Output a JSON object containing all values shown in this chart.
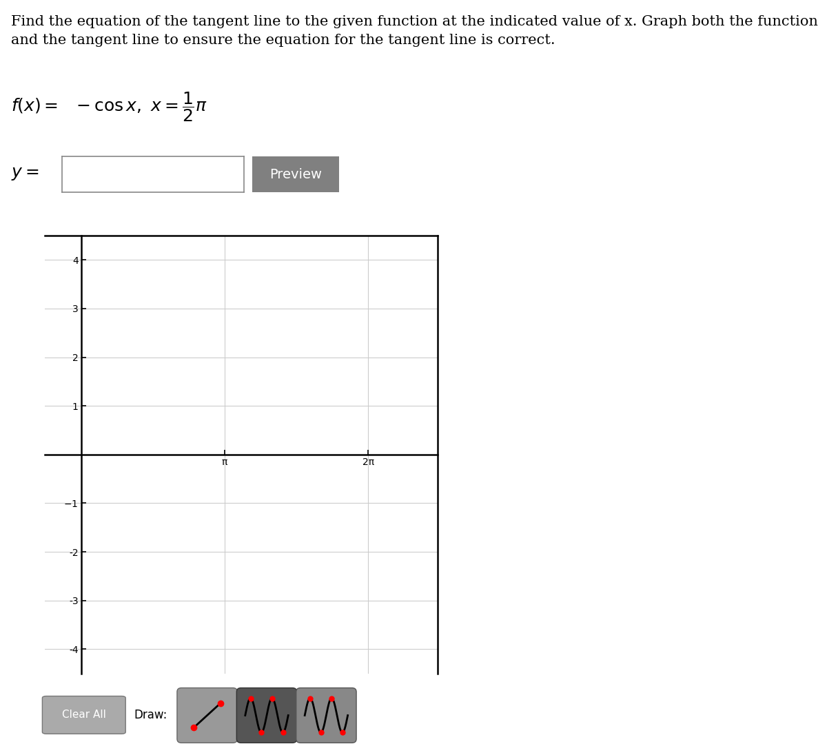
{
  "title_line1": "Find the equation of the tangent line to the given function at the indicated value of x. Graph both the function",
  "title_line2": "and the tangent line to ensure the equation for the tangent line is correct.",
  "graph_bg": "#ffffff",
  "graph_border_color": "#000000",
  "grid_color": "#cccccc",
  "axis_color": "#000000",
  "text_color": "#000000",
  "xlim": [
    -0.8,
    7.8
  ],
  "ylim": [
    -4.5,
    4.5
  ],
  "yticks": [
    -4,
    -3,
    -2,
    -1,
    1,
    2,
    3,
    4
  ],
  "xtick_positions": [
    3.14159265,
    6.2831853
  ],
  "xtick_labels": [
    "π",
    "2π"
  ],
  "page_bg": "#ffffff",
  "input_box_color": "#ffffff",
  "input_box_border": "#888888",
  "preview_btn_color": "#808080",
  "preview_btn_text_color": "#ffffff",
  "clear_btn_color": "#aaaaaa",
  "clear_btn_text_color": "#ffffff",
  "draw_btn1_color": "#999999",
  "draw_btn2_color": "#555555",
  "draw_btn3_color": "#888888",
  "title_fontsize": 15,
  "formula_fontsize": 18,
  "ylabel_fontsize": 18,
  "preview_fontsize": 14,
  "graph_tick_fontsize": 13,
  "btn_fontsize": 13
}
